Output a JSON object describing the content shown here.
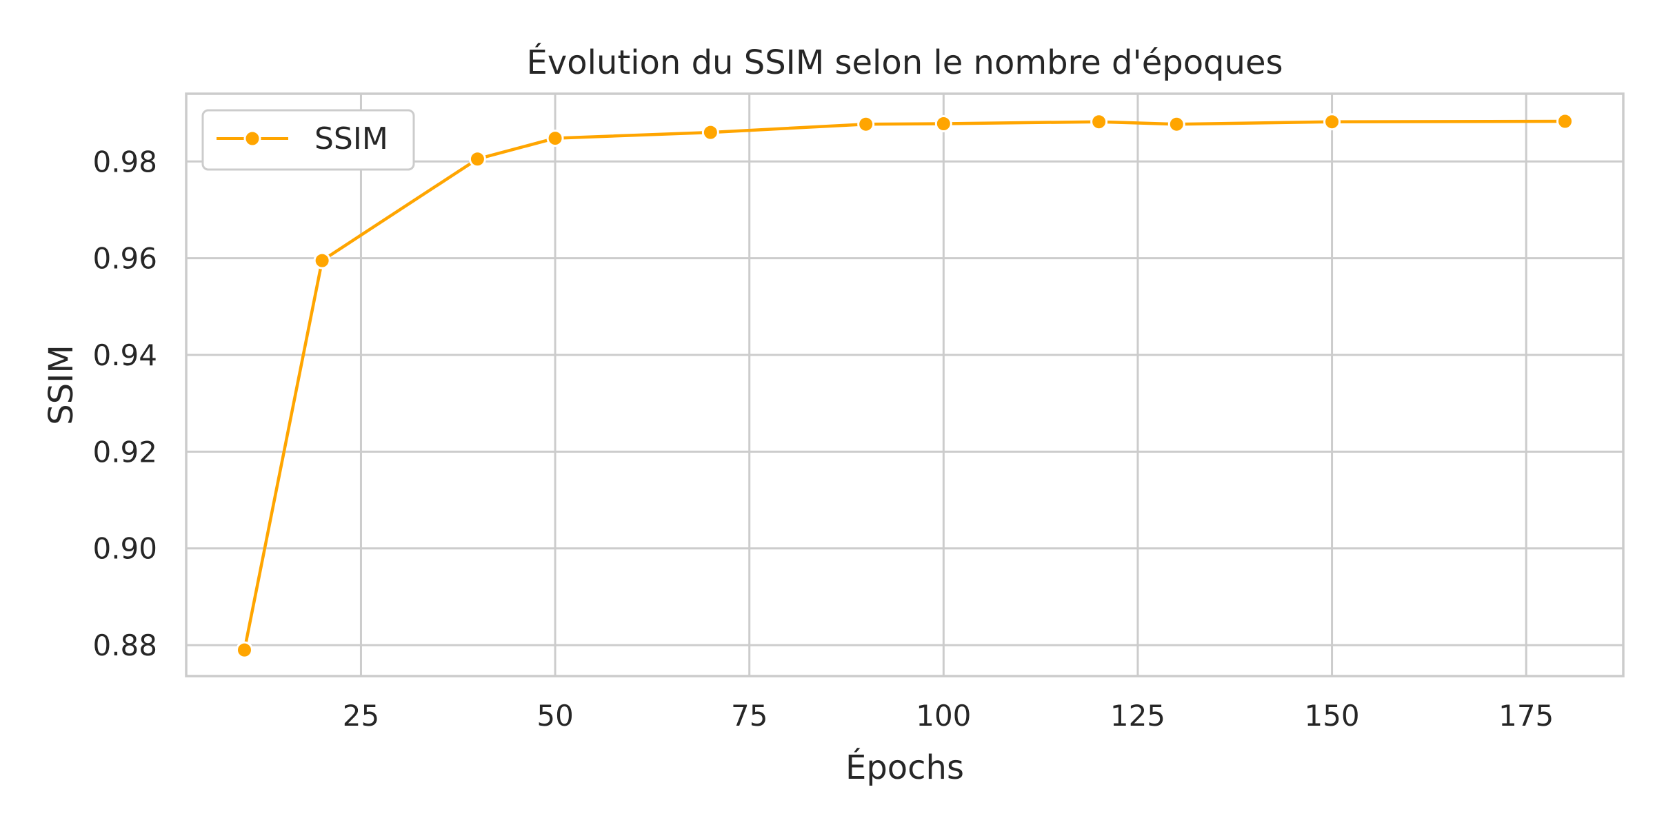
{
  "chart_data": {
    "type": "line",
    "title": "Évolution du SSIM selon le nombre d'époques",
    "xlabel": "Épochs",
    "ylabel": "SSIM",
    "xlim": [
      2.5,
      187.5
    ],
    "ylim": [
      0.8736,
      0.994
    ],
    "xticks": [
      25,
      50,
      75,
      100,
      125,
      150,
      175
    ],
    "yticks": [
      0.88,
      0.9,
      0.92,
      0.94,
      0.96,
      0.98
    ],
    "xtick_labels": [
      "25",
      "50",
      "75",
      "100",
      "125",
      "150",
      "175"
    ],
    "ytick_labels": [
      "0.88",
      "0.90",
      "0.92",
      "0.94",
      "0.96",
      "0.98"
    ],
    "grid": true,
    "legend_position": "top-left",
    "series": [
      {
        "name": "SSIM",
        "color": "#ffa500",
        "marker": "circle",
        "x": [
          10,
          20,
          40,
          50,
          70,
          90,
          100,
          120,
          130,
          150,
          180
        ],
        "y": [
          0.879,
          0.9595,
          0.9805,
          0.9848,
          0.986,
          0.9877,
          0.9878,
          0.9882,
          0.9877,
          0.9882,
          0.9883
        ]
      }
    ]
  }
}
